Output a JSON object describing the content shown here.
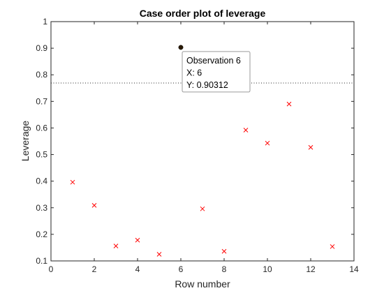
{
  "chart_data": {
    "type": "scatter",
    "title": "Case order plot of leverage",
    "xlabel": "Row number",
    "ylabel": "Leverage",
    "xlim": [
      0,
      14
    ],
    "ylim": [
      0.1,
      1
    ],
    "xticks": [
      "0",
      "2",
      "4",
      "6",
      "8",
      "10",
      "12",
      "14"
    ],
    "yticks": [
      "0.1",
      "0.2",
      "0.3",
      "0.4",
      "0.5",
      "0.6",
      "0.7",
      "0.8",
      "0.9",
      "1"
    ],
    "grid": false,
    "threshold": 0.769,
    "series": [
      {
        "marker": "x",
        "color": "#ff0000",
        "points": [
          {
            "x": 1,
            "y": 0.396
          },
          {
            "x": 2,
            "y": 0.309
          },
          {
            "x": 3,
            "y": 0.156
          },
          {
            "x": 4,
            "y": 0.178
          },
          {
            "x": 5,
            "y": 0.125
          },
          {
            "x": 7,
            "y": 0.296
          },
          {
            "x": 8,
            "y": 0.136
          },
          {
            "x": 9,
            "y": 0.592
          },
          {
            "x": 10,
            "y": 0.543
          },
          {
            "x": 11,
            "y": 0.69
          },
          {
            "x": 12,
            "y": 0.527
          },
          {
            "x": 13,
            "y": 0.154
          }
        ]
      }
    ],
    "highlighted": {
      "x": 6,
      "y": 0.90312,
      "color": "#000000"
    },
    "datatip": {
      "line1": "Observation 6",
      "line2": "X: 6",
      "line3": "Y: 0.90312"
    }
  }
}
